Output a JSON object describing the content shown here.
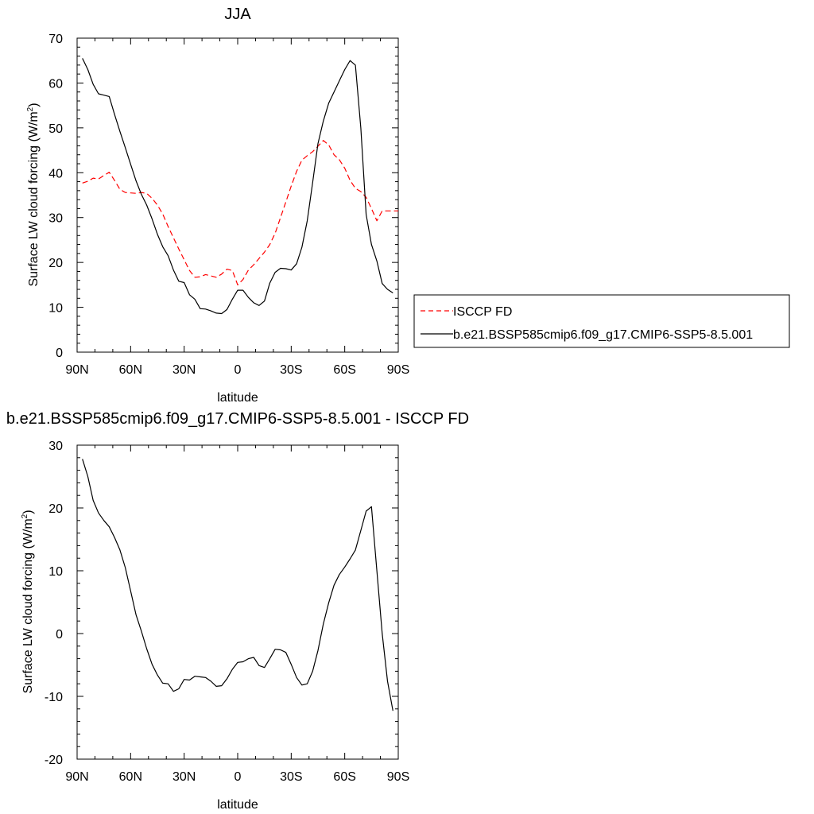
{
  "chart_data": [
    {
      "type": "line",
      "title": "JJA",
      "xlabel": "latitude",
      "ylabel": "Surface LW cloud forcing (W/m2)",
      "ylabel_main": "Surface LW cloud forcing (W/m",
      "ylabel_sup": "2",
      "ylabel_tail": ")",
      "xlim": [
        90,
        -90
      ],
      "ylim": [
        0,
        70
      ],
      "xticks": [
        90,
        60,
        30,
        0,
        -30,
        -60,
        -90
      ],
      "xticklabels": [
        "90N",
        "60N",
        "30N",
        "0",
        "30S",
        "60S",
        "90S"
      ],
      "yticks": [
        0,
        10,
        20,
        30,
        40,
        50,
        60,
        70
      ],
      "yticklabels": [
        "0",
        "10",
        "20",
        "30",
        "40",
        "50",
        "60",
        "70"
      ],
      "legend": "right",
      "series": [
        {
          "name": "ISCCP FD",
          "color": "#ff0000",
          "dash": true,
          "x": [
            87,
            84,
            81,
            78,
            75,
            72,
            69,
            66,
            63,
            60,
            57,
            54,
            51,
            48,
            45,
            42,
            39,
            36,
            33,
            30,
            27,
            24,
            21,
            18,
            15,
            12,
            9,
            6,
            3,
            0,
            -3,
            -6,
            -9,
            -12,
            -15,
            -18,
            -21,
            -24,
            -27,
            -30,
            -33,
            -36,
            -39,
            -42,
            -45,
            -48,
            -51,
            -54,
            -57,
            -60,
            -63,
            -66,
            -69,
            -72,
            -75,
            -78,
            -81,
            -84,
            -87,
            -90
          ],
          "y": [
            37.7,
            38.1,
            38.8,
            38.6,
            39.4,
            40.1,
            38.3,
            36.3,
            35.6,
            35.5,
            35.4,
            35.6,
            35.4,
            34.3,
            32.8,
            30.8,
            28.0,
            25.5,
            23.0,
            20.6,
            18.2,
            16.7,
            16.8,
            17.3,
            17.0,
            16.7,
            17.4,
            18.5,
            18.2,
            15.0,
            16.2,
            18.3,
            19.5,
            20.9,
            22.3,
            24.0,
            26.5,
            30.0,
            33.5,
            37.0,
            40.3,
            42.8,
            43.8,
            44.7,
            45.9,
            47.2,
            46.2,
            44.0,
            42.9,
            41.0,
            38.3,
            36.5,
            35.8,
            34.5,
            32.0,
            29.3,
            31.5,
            31.5,
            31.5,
            31.5
          ]
        },
        {
          "name": "b.e21.BSSP585cmip6.f09_g17.CMIP6-SSP5-8.5.001",
          "color": "#000000",
          "dash": false,
          "x": [
            87,
            84,
            81,
            78,
            75,
            72,
            69,
            66,
            63,
            60,
            57,
            54,
            51,
            48,
            45,
            42,
            39,
            36,
            33,
            30,
            27,
            24,
            21,
            18,
            15,
            12,
            9,
            6,
            3,
            0,
            -3,
            -6,
            -9,
            -12,
            -15,
            -18,
            -21,
            -24,
            -27,
            -30,
            -33,
            -36,
            -39,
            -42,
            -45,
            -48,
            -51,
            -54,
            -57,
            -60,
            -63,
            -66,
            -69,
            -72,
            -75,
            -78,
            -81,
            -84,
            -87
          ],
          "y": [
            65.5,
            63.0,
            59.7,
            57.6,
            57.3,
            57.0,
            53.0,
            49.2,
            45.6,
            41.9,
            38.2,
            35.2,
            32.8,
            29.7,
            26.3,
            23.5,
            21.5,
            18.3,
            15.8,
            15.5,
            12.8,
            11.8,
            9.7,
            9.6,
            9.2,
            8.7,
            8.6,
            9.5,
            11.8,
            13.8,
            13.8,
            12.2,
            11.0,
            10.4,
            11.4,
            15.4,
            17.8,
            18.7,
            18.6,
            18.3,
            19.7,
            23.4,
            29.3,
            37.8,
            46.5,
            51.5,
            55.5,
            58.0,
            60.5,
            63.0,
            65.0,
            64.0,
            50.0,
            30.7,
            24.0,
            20.3,
            15.3,
            14.0,
            13.2
          ]
        }
      ]
    },
    {
      "type": "line",
      "title": "b.e21.BSSP585cmip6.f09_g17.CMIP6-SSP5-8.5.001 - ISCCP FD",
      "xlabel": "latitude",
      "ylabel": "Surface LW cloud forcing (W/m2)",
      "ylabel_main": "Surface LW cloud forcing (W/m",
      "ylabel_sup": "2",
      "ylabel_tail": ")",
      "xlim": [
        90,
        -90
      ],
      "ylim": [
        -20,
        30
      ],
      "xticks": [
        90,
        60,
        30,
        0,
        -30,
        -60,
        -90
      ],
      "xticklabels": [
        "90N",
        "60N",
        "30N",
        "0",
        "30S",
        "60S",
        "90S"
      ],
      "yticks": [
        -20,
        -10,
        0,
        10,
        20,
        30
      ],
      "yticklabels": [
        "-20",
        "-10",
        "0",
        "10",
        "20",
        "30"
      ],
      "legend": "none",
      "series": [
        {
          "color": "#000000",
          "dash": false,
          "x": [
            87,
            84,
            81,
            78,
            75,
            72,
            69,
            66,
            63,
            60,
            57,
            54,
            51,
            48,
            45,
            42,
            39,
            36,
            33,
            30,
            27,
            24,
            21,
            18,
            15,
            12,
            9,
            6,
            3,
            0,
            -3,
            -6,
            -9,
            -12,
            -15,
            -18,
            -21,
            -24,
            -27,
            -30,
            -33,
            -36,
            -39,
            -42,
            -45,
            -48,
            -51,
            -54,
            -57,
            -60,
            -63,
            -66,
            -69,
            -72,
            -75,
            -78,
            -81,
            -84,
            -87
          ],
          "y": [
            27.8,
            25.0,
            21.2,
            19.2,
            18.0,
            17.0,
            15.3,
            13.3,
            10.5,
            6.8,
            3.0,
            0.4,
            -2.4,
            -4.9,
            -6.6,
            -7.9,
            -8.0,
            -9.2,
            -8.8,
            -7.3,
            -7.4,
            -6.8,
            -6.9,
            -7.0,
            -7.6,
            -8.4,
            -8.3,
            -7.2,
            -5.7,
            -4.6,
            -4.5,
            -4.0,
            -3.8,
            -5.1,
            -5.4,
            -4.0,
            -2.5,
            -2.6,
            -3.0,
            -4.9,
            -7.0,
            -8.2,
            -8.0,
            -6.0,
            -2.7,
            1.5,
            4.9,
            7.7,
            9.4,
            10.6,
            11.9,
            13.3,
            16.4,
            19.5,
            20.2,
            10.0,
            0.0,
            -7.6,
            -12.3
          ]
        }
      ]
    }
  ]
}
